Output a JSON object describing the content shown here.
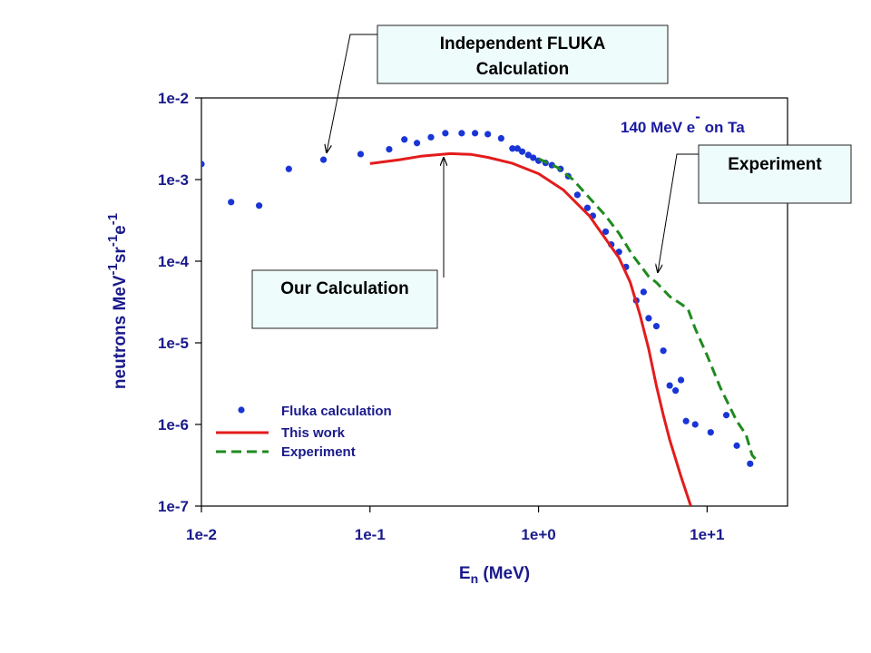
{
  "callouts": {
    "fluka_line1": "Independent FLUKA",
    "fluka_line2": "Calculation",
    "experiment": "Experiment",
    "ours": "Our Calculation"
  },
  "chart_data": {
    "type": "scatter",
    "xscale": "log",
    "yscale": "log",
    "xlim": [
      0.01,
      30
    ],
    "ylim": [
      1e-07,
      0.01
    ],
    "xticks": [
      "1e-2",
      "1e-1",
      "1e+0",
      "1e+1"
    ],
    "yticks": [
      "1e-2",
      "1e-3",
      "1e-4",
      "1e-5",
      "1e-6",
      "1e-7"
    ],
    "xlabel": {
      "main": "E",
      "sub": "n",
      "rest": " (MeV)"
    },
    "ylabel": {
      "p1": "neutrons MeV",
      "s1": "-1",
      "p2": "sr",
      "s2": "-1",
      "p3": "e",
      "s3": "-1"
    },
    "annotation": {
      "text": "140 MeV e",
      "sup": "-",
      "after": " on Ta"
    },
    "legend_position": "bottom-left",
    "colors": {
      "fluka": "#1a35d6",
      "this_work": "#e31c1c",
      "experiment": "#1f8a1f",
      "axis_text": "#1a1a8c"
    },
    "series": [
      {
        "name": "Fluka calculation",
        "style": "markers",
        "points": [
          [
            0.01,
            0.00155
          ],
          [
            0.015,
            0.00053
          ],
          [
            0.022,
            0.00048
          ],
          [
            0.033,
            0.00135
          ],
          [
            0.053,
            0.00175
          ],
          [
            0.088,
            0.00205
          ],
          [
            0.13,
            0.00235
          ],
          [
            0.16,
            0.0031
          ],
          [
            0.19,
            0.0028
          ],
          [
            0.23,
            0.0033
          ],
          [
            0.28,
            0.0037
          ],
          [
            0.35,
            0.0037
          ],
          [
            0.42,
            0.0037
          ],
          [
            0.5,
            0.0036
          ],
          [
            0.6,
            0.0032
          ],
          [
            0.7,
            0.0024
          ],
          [
            0.75,
            0.0024
          ],
          [
            0.8,
            0.0022
          ],
          [
            0.87,
            0.002
          ],
          [
            0.93,
            0.00185
          ],
          [
            1.0,
            0.0017
          ],
          [
            1.1,
            0.0016
          ],
          [
            1.2,
            0.0015
          ],
          [
            1.35,
            0.00135
          ],
          [
            1.5,
            0.0011
          ],
          [
            1.7,
            0.00065
          ],
          [
            1.95,
            0.00045
          ],
          [
            2.1,
            0.00036
          ],
          [
            2.5,
            0.00023
          ],
          [
            2.7,
            0.00016
          ],
          [
            3.0,
            0.00013
          ],
          [
            3.3,
            8.5e-05
          ],
          [
            3.8,
            3.3e-05
          ],
          [
            4.2,
            4.2e-05
          ],
          [
            4.5,
            2e-05
          ],
          [
            5.0,
            1.6e-05
          ],
          [
            5.5,
            8e-06
          ],
          [
            6.0,
            3e-06
          ],
          [
            6.5,
            2.6e-06
          ],
          [
            7.0,
            3.5e-06
          ],
          [
            7.5,
            1.1e-06
          ],
          [
            8.5,
            1e-06
          ],
          [
            10.5,
            8e-07
          ],
          [
            13.0,
            1.3e-06
          ],
          [
            15.0,
            5.5e-07
          ],
          [
            18.0,
            3.3e-07
          ]
        ]
      },
      {
        "name": "This work",
        "style": "solid",
        "points": [
          [
            0.1,
            0.00157
          ],
          [
            0.15,
            0.00175
          ],
          [
            0.2,
            0.00193
          ],
          [
            0.3,
            0.00208
          ],
          [
            0.4,
            0.00203
          ],
          [
            0.5,
            0.00187
          ],
          [
            0.7,
            0.00158
          ],
          [
            1.0,
            0.00118
          ],
          [
            1.4,
            0.00075
          ],
          [
            2.0,
            0.00036
          ],
          [
            3.0,
            0.00011
          ],
          [
            3.5,
            5.5e-05
          ],
          [
            4.0,
            2.2e-05
          ],
          [
            4.5,
            8.5e-06
          ],
          [
            5.0,
            3e-06
          ],
          [
            5.5,
            1.3e-06
          ],
          [
            6.0,
            6.5e-07
          ],
          [
            7.0,
            2.3e-07
          ],
          [
            8.0,
            1e-07
          ]
        ]
      },
      {
        "name": "Experiment",
        "style": "dashed",
        "points": [
          [
            1.0,
            0.0018
          ],
          [
            1.3,
            0.0014
          ],
          [
            1.6,
            0.001
          ],
          [
            2.0,
            0.0006
          ],
          [
            2.5,
            0.00036
          ],
          [
            3.0,
            0.00022
          ],
          [
            3.6,
            0.00012
          ],
          [
            4.5,
            6.5e-05
          ],
          [
            5.0,
            5.5e-05
          ],
          [
            6.0,
            3.7e-05
          ],
          [
            7.0,
            3e-05
          ],
          [
            7.7,
            2.6e-05
          ],
          [
            8.5,
            1.5e-05
          ],
          [
            10.0,
            7e-06
          ],
          [
            12.0,
            2.8e-06
          ],
          [
            15.0,
            1.1e-06
          ],
          [
            17.0,
            7.5e-07
          ],
          [
            18.5,
            4.2e-07
          ],
          [
            20.0,
            3.5e-07
          ]
        ]
      }
    ]
  }
}
